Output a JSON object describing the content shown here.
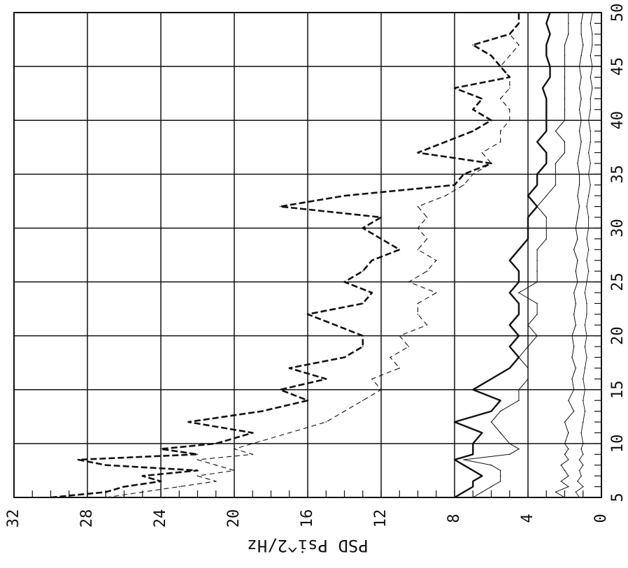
{
  "chart_data": {
    "type": "line",
    "title": "",
    "xlabel": "",
    "ylabel": "PSD Psi^2/Hz",
    "orientation": "rotated-90-counterclockwise",
    "xlim": [
      5,
      50
    ],
    "ylim": [
      0,
      32
    ],
    "x_ticks": [
      "5",
      "10",
      "15",
      "20",
      "25",
      "30",
      "35",
      "40",
      "45",
      "50"
    ],
    "y_ticks": [
      "0",
      "4",
      "8",
      "12",
      "16",
      "20",
      "24",
      "28",
      "32"
    ],
    "grid": true,
    "series": [
      {
        "style": "dashed-heavy",
        "x": [
          5,
          5.5,
          6,
          6.5,
          7,
          7.5,
          8,
          8.5,
          9,
          9.5,
          10,
          11,
          12,
          13,
          14,
          15,
          16,
          17,
          18,
          19,
          20,
          21,
          22,
          23,
          24,
          25,
          26,
          27,
          28,
          29,
          30,
          31,
          32,
          33,
          34,
          35,
          36,
          37,
          38,
          39,
          40,
          41,
          42,
          43,
          44,
          45,
          46,
          47,
          48,
          49,
          50
        ],
        "values": [
          30,
          27,
          26,
          24,
          25,
          22,
          27,
          28.5,
          22,
          24,
          21,
          19,
          22.5,
          18.5,
          16,
          17.5,
          15,
          17,
          14,
          13,
          13,
          14.5,
          16,
          13,
          12.5,
          14,
          13,
          12.5,
          11,
          12,
          13,
          12,
          17.5,
          14,
          8,
          7.5,
          6,
          10,
          8.5,
          7,
          6,
          7,
          6.5,
          8,
          5,
          5.5,
          6,
          7,
          5,
          4.5,
          4.5
        ]
      },
      {
        "style": "thin-dashed",
        "x": [
          5,
          5.5,
          6,
          6.5,
          7,
          7.5,
          8,
          8.5,
          9,
          9.5,
          10,
          11,
          12,
          13,
          14,
          15,
          16,
          17,
          18,
          19,
          20,
          21,
          22,
          23,
          24,
          25,
          26,
          27,
          28,
          29,
          30,
          31,
          32,
          33,
          34,
          35,
          36,
          37,
          38,
          39,
          40,
          41,
          42,
          43,
          44,
          45,
          46,
          47,
          48,
          49,
          50
        ],
        "values": [
          27,
          25,
          23,
          21,
          22,
          20,
          21,
          22,
          19,
          20,
          19,
          17,
          15,
          14,
          13,
          12,
          12.5,
          11,
          11.5,
          10.5,
          11,
          9.5,
          10,
          10,
          9,
          10.5,
          9.5,
          9,
          10,
          9.5,
          10,
          9.5,
          10,
          8.5,
          7.5,
          7,
          6,
          6.5,
          5.5,
          5.5,
          5,
          5,
          5.5,
          5,
          5,
          5.5,
          5,
          4.5,
          5,
          4.5,
          4.5
        ]
      },
      {
        "style": "solid-heavy",
        "x": [
          5,
          5.5,
          6,
          6.5,
          7,
          7.5,
          8,
          8.5,
          9,
          9.5,
          10,
          11,
          12,
          13,
          14,
          15,
          16,
          17,
          18,
          19,
          20,
          21,
          22,
          23,
          24,
          25,
          26,
          27,
          28,
          29,
          30,
          31,
          32,
          33,
          34,
          35,
          36,
          37,
          38,
          39,
          40,
          41,
          42,
          43,
          44,
          45,
          46,
          47,
          48,
          49,
          50
        ],
        "values": [
          8,
          7.5,
          7,
          7,
          6.5,
          7,
          7.5,
          8,
          7,
          7,
          7,
          6.5,
          8,
          6,
          5.5,
          7,
          6,
          5,
          4.5,
          5,
          4.5,
          5,
          4.5,
          4.5,
          5,
          4.5,
          4.5,
          5,
          4.5,
          4,
          4,
          4,
          3.5,
          4,
          3.5,
          3.5,
          3,
          3,
          3.5,
          3,
          3,
          3,
          3,
          3.2,
          2.8,
          2.8,
          3,
          3,
          2.8,
          3,
          2.8
        ]
      },
      {
        "style": "thin-solid",
        "x": [
          5,
          5.5,
          6,
          6.5,
          7,
          7.5,
          8,
          8.5,
          9,
          9.5,
          10,
          11,
          12,
          13,
          14,
          15,
          16,
          17,
          18,
          19,
          20,
          21,
          22,
          23,
          24,
          25,
          26,
          27,
          28,
          29,
          30,
          31,
          32,
          33,
          34,
          35,
          36,
          37,
          38,
          39,
          40,
          41,
          42,
          43,
          44,
          45,
          46,
          47,
          48,
          49,
          50
        ],
        "values": [
          7,
          6.5,
          6,
          5.5,
          5.5,
          5.5,
          6,
          7.5,
          5,
          4.5,
          5,
          5.5,
          6,
          5.5,
          4.5,
          4.5,
          4,
          4,
          4.5,
          4,
          3.5,
          4,
          3.5,
          3.5,
          4.5,
          3.5,
          3.5,
          3.5,
          3.5,
          3,
          3,
          3,
          3.5,
          3,
          2.5,
          2.5,
          2.5,
          2,
          2,
          2.5,
          2,
          2,
          2,
          2,
          2,
          2,
          2,
          2,
          1.8,
          1.8,
          1.8
        ]
      },
      {
        "style": "thin-solid-low-a",
        "x": [
          5,
          5.5,
          6,
          6.5,
          7,
          7.5,
          8,
          8.5,
          9,
          9.5,
          10,
          11,
          12,
          13,
          14,
          15,
          16,
          17,
          18,
          19,
          20,
          21,
          22,
          23,
          24,
          25,
          26,
          27,
          28,
          29,
          30,
          31,
          32,
          33,
          34,
          35,
          36,
          37,
          38,
          39,
          40,
          41,
          42,
          43,
          44,
          45,
          46,
          47,
          48,
          49,
          50
        ],
        "values": [
          2,
          2.5,
          1.8,
          2.2,
          1.8,
          2,
          2.2,
          1.8,
          2,
          1.8,
          2,
          1.8,
          2,
          1.5,
          1.8,
          1.5,
          1.6,
          1.4,
          1.6,
          1.5,
          1.6,
          1.4,
          1.5,
          1.4,
          1.5,
          1.3,
          1.4,
          1.3,
          1.5,
          1.3,
          1.4,
          1.3,
          1.2,
          1.3,
          1.2,
          1.2,
          1.3,
          1.2,
          1.1,
          1.2,
          1.1,
          1.2,
          1.1,
          1.2,
          1.1,
          1.2,
          1.1,
          1.0,
          1.1,
          1.1,
          1.0
        ]
      },
      {
        "style": "thin-solid-low-b",
        "x": [
          5,
          5.5,
          6,
          6.5,
          7,
          7.5,
          8,
          8.5,
          9,
          9.5,
          10,
          11,
          12,
          13,
          14,
          15,
          16,
          17,
          18,
          19,
          20,
          21,
          22,
          23,
          24,
          25,
          26,
          27,
          28,
          29,
          30,
          31,
          32,
          33,
          34,
          35,
          36,
          37,
          38,
          39,
          40,
          41,
          42,
          43,
          44,
          45,
          46,
          47,
          48,
          49,
          50
        ],
        "values": [
          1.2,
          1.4,
          1.0,
          1.3,
          1.1,
          1.2,
          1.0,
          1.2,
          1.0,
          1.1,
          1.0,
          1.1,
          1.0,
          0.9,
          1.0,
          0.9,
          1.0,
          0.9,
          0.8,
          0.9,
          0.8,
          0.9,
          0.8,
          0.8,
          0.9,
          0.8,
          0.7,
          0.8,
          0.7,
          0.8,
          0.7,
          0.7,
          0.8,
          0.7,
          0.6,
          0.7,
          0.6,
          0.7,
          0.6,
          0.6,
          0.7,
          0.6,
          0.6,
          0.5,
          0.6,
          0.5,
          0.6,
          0.5,
          0.5,
          0.6,
          0.5
        ]
      }
    ],
    "colors": {
      "line": "#111111",
      "grid": "#111111",
      "background": "#ffffff"
    }
  }
}
